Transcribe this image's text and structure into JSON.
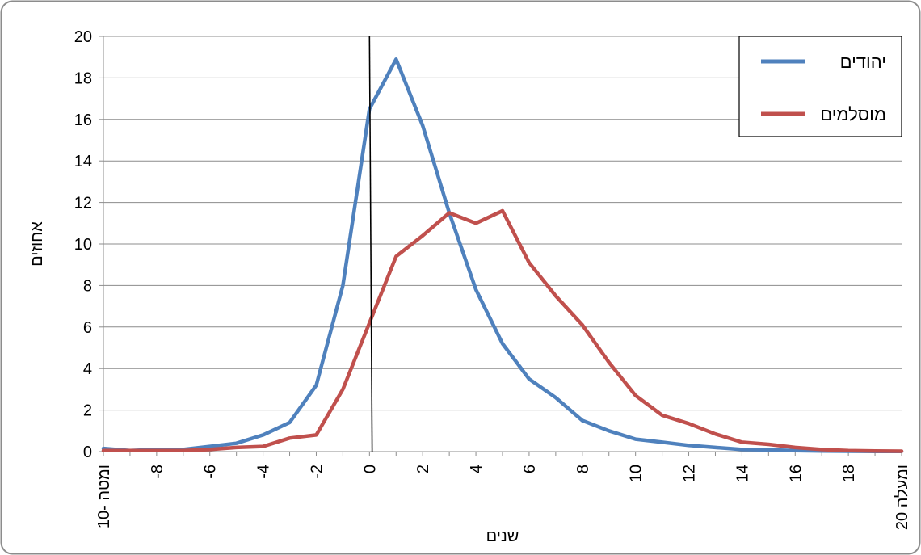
{
  "chart_data": {
    "type": "line",
    "xlabel": "שנים",
    "ylabel": "אחוזים",
    "ylim": [
      0,
      20
    ],
    "xlim": [
      -10,
      20
    ],
    "yticks": [
      "0",
      "2",
      "4",
      "6",
      "8",
      "10",
      "12",
      "14",
      "16",
      "18",
      "20"
    ],
    "xticks": [
      {
        "x": -10,
        "label": "10- ומטה"
      },
      {
        "x": -8,
        "label": "-8"
      },
      {
        "x": -6,
        "label": "-6"
      },
      {
        "x": -4,
        "label": "-4"
      },
      {
        "x": -2,
        "label": "-2"
      },
      {
        "x": 0,
        "label": "0"
      },
      {
        "x": 2,
        "label": "2"
      },
      {
        "x": 4,
        "label": "4"
      },
      {
        "x": 6,
        "label": "6"
      },
      {
        "x": 8,
        "label": "8"
      },
      {
        "x": 10,
        "label": "10"
      },
      {
        "x": 12,
        "label": "12"
      },
      {
        "x": 14,
        "label": "14"
      },
      {
        "x": 16,
        "label": "16"
      },
      {
        "x": 18,
        "label": "18"
      },
      {
        "x": 20,
        "label": "20 ומעלה"
      }
    ],
    "grid": true,
    "legend_position": "top-right",
    "x": [
      -10,
      -9,
      -8,
      -7,
      -6,
      -5,
      -4,
      -3,
      -2,
      -1,
      0,
      1,
      2,
      3,
      4,
      5,
      6,
      7,
      8,
      9,
      10,
      11,
      12,
      13,
      14,
      15,
      16,
      17,
      18,
      19,
      20
    ],
    "series": [
      {
        "name": "יהודים",
        "color": "#4f81bd",
        "values": [
          0.15,
          0.05,
          0.1,
          0.1,
          0.25,
          0.4,
          0.8,
          1.4,
          3.2,
          8.0,
          16.5,
          18.9,
          15.7,
          11.5,
          7.8,
          5.2,
          3.5,
          2.6,
          1.5,
          1.0,
          0.6,
          0.45,
          0.3,
          0.2,
          0.1,
          0.08,
          0.05,
          0.03,
          0.02,
          0.01,
          0.01
        ]
      },
      {
        "name": "מוסלמים",
        "color": "#c0504d",
        "values": [
          0.05,
          0.05,
          0.05,
          0.05,
          0.1,
          0.2,
          0.25,
          0.65,
          0.8,
          3.0,
          6.2,
          9.4,
          10.4,
          11.5,
          11.0,
          11.6,
          9.1,
          7.5,
          6.1,
          4.3,
          2.7,
          1.75,
          1.35,
          0.85,
          0.45,
          0.35,
          0.2,
          0.1,
          0.05,
          0.03,
          0.02
        ]
      }
    ],
    "reference_line": {
      "x_top": 0.0,
      "x_bottom": 0.1,
      "y_top": 20,
      "y_bottom": 0
    }
  }
}
